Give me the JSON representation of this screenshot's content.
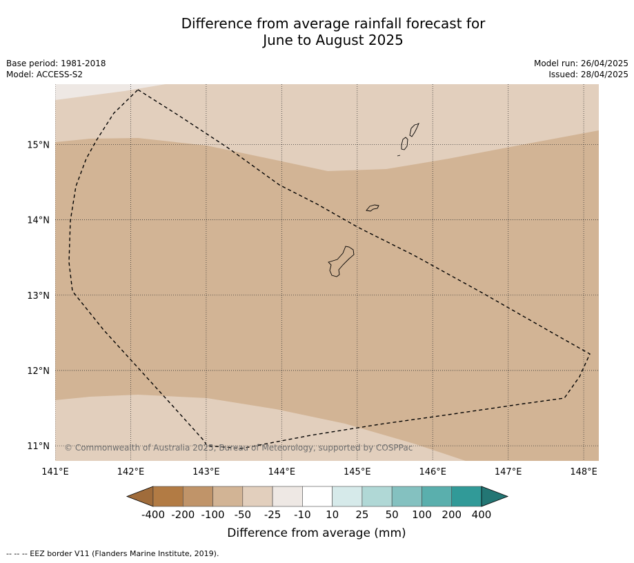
{
  "title_line1": "Difference from average rainfall forecast for",
  "title_line2": "June to August 2025",
  "meta_left": {
    "base_period": "Base period: 1981-2018",
    "model": "Model: ACCESS-S2"
  },
  "meta_right": {
    "model_run": "Model run: 26/04/2025",
    "issued": "Issued: 28/04/2025"
  },
  "map": {
    "lon_range": [
      141,
      148.2
    ],
    "lat_range": [
      10.8,
      15.8
    ],
    "lon_ticks": [
      "141°E",
      "142°E",
      "143°E",
      "144°E",
      "145°E",
      "146°E",
      "147°E",
      "148°E"
    ],
    "lat_ticks": [
      "11°N",
      "12°N",
      "13°N",
      "14°N",
      "15°N"
    ],
    "gridlines": true,
    "credit": "© Commonwealth of Australia 2025, Bureau of Meteorology, supported by COSPPac",
    "fill_colors": {
      "light_dry": "#e2cfbd",
      "mid_dry": "#d2b495",
      "near_zero": "#eee8e4"
    }
  },
  "colorbar": {
    "title": "Difference from average (mm)",
    "labels": [
      "-400",
      "-200",
      "-100",
      "-50",
      "-25",
      "-10",
      "10",
      "25",
      "50",
      "100",
      "200",
      "400"
    ],
    "colors": [
      "#b27b44",
      "#c09469",
      "#d2b495",
      "#e2cfbd",
      "#eee8e4",
      "#ffffff",
      "#d6eaea",
      "#b0d8d6",
      "#84c1c0",
      "#5aafad",
      "#319a98"
    ],
    "under_color": "#a06c3b",
    "over_color": "#237674"
  },
  "footnote": "--  --  -- EEZ border V11 (Flanders Marine Institute, 2019)."
}
